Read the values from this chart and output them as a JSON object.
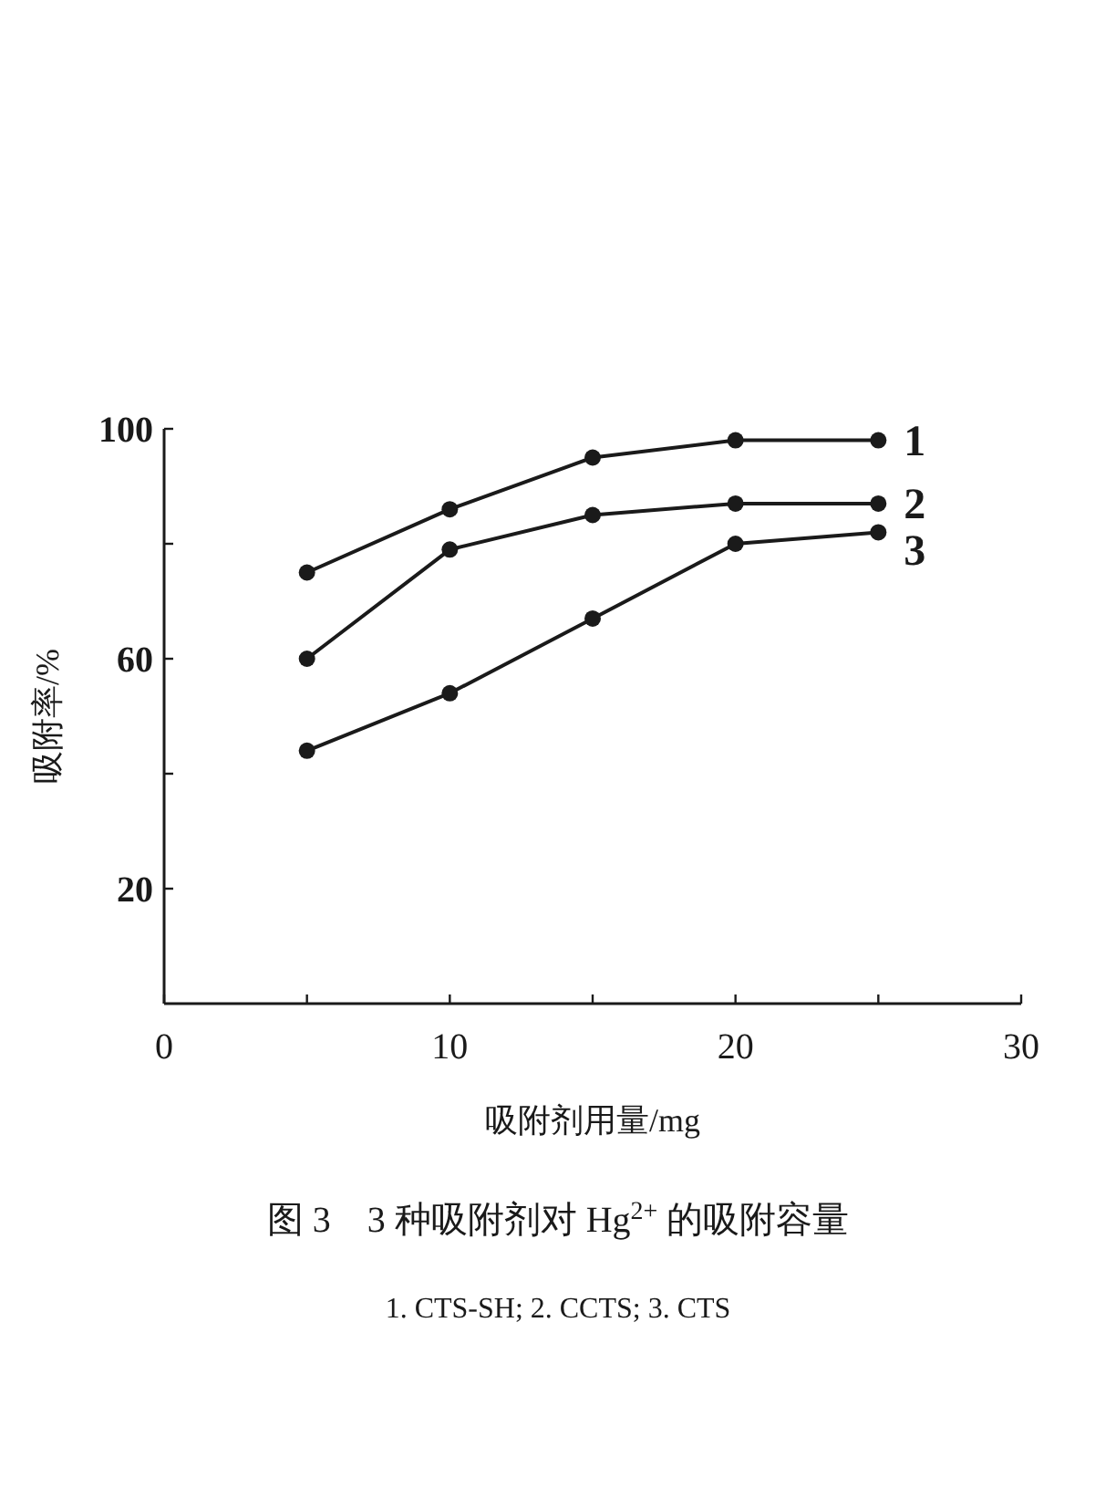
{
  "chart_data": {
    "type": "line",
    "title": "图 3　3 种吸附剂对 Hg$^{2+}$ 的吸附容量",
    "xlabel": "吸附剂用量/mg",
    "ylabel": "吸附率/%",
    "annotations": [
      "1. CTS-SH; 2. CCTS; 3. CTS"
    ],
    "x": [
      5,
      10,
      15,
      20,
      25
    ],
    "series": [
      {
        "name": "1",
        "color": "#1a1a1a",
        "values": [
          75,
          86,
          95,
          98,
          98
        ]
      },
      {
        "name": "2",
        "color": "#1a1a1a",
        "values": [
          60,
          79,
          85,
          87,
          87
        ]
      },
      {
        "name": "3",
        "color": "#1a1a1a",
        "values": [
          44,
          54,
          67,
          80,
          82
        ]
      }
    ],
    "xlim": [
      0,
      30
    ],
    "ylim": [
      0,
      100
    ],
    "xticks": [
      0,
      {
        "value": 5,
        "label": null
      },
      10,
      {
        "value": 15,
        "label": null
      },
      20,
      {
        "value": 25,
        "label": null
      },
      30
    ],
    "yticks": [
      {
        "value": 20,
        "label": "20"
      },
      {
        "value": 40,
        "label": null
      },
      60,
      {
        "value": 80,
        "label": null
      },
      100
    ],
    "marker": "circle",
    "line_style": "solid",
    "grid": false
  }
}
